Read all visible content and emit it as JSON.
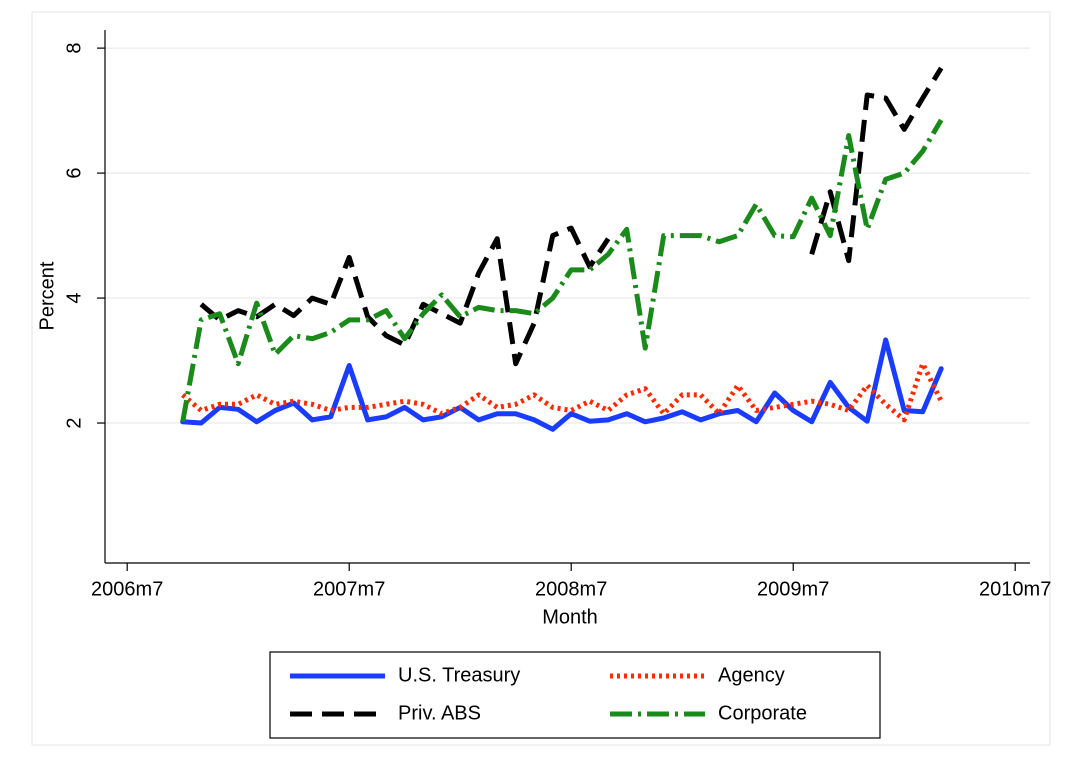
{
  "chart_data": {
    "type": "line",
    "x_label": "Month",
    "y_label": "Percent",
    "x": [
      561,
      562,
      563,
      564,
      565,
      566,
      567,
      568,
      569,
      570,
      571,
      572,
      573,
      574,
      575,
      576,
      577,
      578,
      579,
      580,
      581,
      582,
      583,
      584,
      585,
      586,
      587,
      588,
      589,
      590,
      591,
      592,
      593,
      594,
      595,
      596,
      597,
      598,
      599,
      600,
      601,
      602
    ],
    "series": [
      {
        "name": "U.S. Treasury",
        "color": "#1a3cff",
        "dash": "solid",
        "values": [
          2.02,
          2.0,
          2.25,
          2.22,
          2.02,
          2.2,
          2.32,
          2.05,
          2.1,
          2.92,
          2.05,
          2.1,
          2.25,
          2.05,
          2.1,
          2.25,
          2.05,
          2.15,
          2.15,
          2.05,
          1.9,
          2.15,
          2.03,
          2.05,
          2.15,
          2.02,
          2.08,
          2.18,
          2.05,
          2.15,
          2.2,
          2.02,
          2.48,
          2.2,
          2.02,
          2.65,
          2.25,
          2.03,
          3.33,
          2.2,
          2.18,
          2.87
        ]
      },
      {
        "name": "Agency",
        "color": "#ff2a00",
        "dash": "dot",
        "values": [
          2.45,
          2.2,
          2.3,
          2.3,
          2.45,
          2.3,
          2.35,
          2.3,
          2.2,
          2.25,
          2.25,
          2.3,
          2.35,
          2.3,
          2.15,
          2.25,
          2.45,
          2.25,
          2.3,
          2.45,
          2.25,
          2.2,
          2.35,
          2.2,
          2.45,
          2.55,
          2.15,
          2.45,
          2.45,
          2.15,
          2.6,
          2.2,
          2.25,
          2.3,
          2.35,
          2.3,
          2.2,
          2.6,
          2.3,
          2.05,
          2.95,
          2.35
        ]
      },
      {
        "name": "Priv. ABS",
        "color": "#000000",
        "dash": "dash",
        "values": [
          null,
          3.9,
          3.65,
          3.8,
          3.7,
          3.9,
          3.72,
          4.0,
          3.9,
          4.65,
          3.7,
          3.4,
          3.25,
          3.9,
          3.75,
          3.6,
          4.4,
          4.95,
          2.95,
          3.6,
          5.0,
          5.12,
          4.5,
          4.95,
          null,
          null,
          null,
          null,
          null,
          null,
          null,
          null,
          null,
          null,
          4.7,
          5.7,
          4.6,
          7.25,
          7.2,
          6.7,
          7.2,
          7.68
        ]
      },
      {
        "name": "Corporate",
        "color": "#1a8a1a",
        "dash": "dashdot",
        "values": [
          2.02,
          3.65,
          3.75,
          2.95,
          3.92,
          3.1,
          3.4,
          3.35,
          3.45,
          3.65,
          3.65,
          3.8,
          3.35,
          3.75,
          4.05,
          3.7,
          3.85,
          3.8,
          3.8,
          3.75,
          4.0,
          4.45,
          4.45,
          4.7,
          5.1,
          3.2,
          5.0,
          5.0,
          5.0,
          4.9,
          5.0,
          5.5,
          5.0,
          4.98,
          5.6,
          5.0,
          6.6,
          5.1,
          5.9,
          6.0,
          6.35,
          6.85
        ]
      }
    ],
    "xlim": [
      556.8,
      606.8
    ],
    "xticks": [
      {
        "value": 558,
        "label": "2006m7"
      },
      {
        "value": 570,
        "label": "2007m7"
      },
      {
        "value": 582,
        "label": "2008m7"
      },
      {
        "value": 594,
        "label": "2009m7"
      },
      {
        "value": 606,
        "label": "2010m7"
      }
    ],
    "ylim": [
      -0.24,
      8.29
    ],
    "yticks": [
      2,
      4,
      6,
      8
    ],
    "grid": true,
    "legend": "bottom"
  }
}
